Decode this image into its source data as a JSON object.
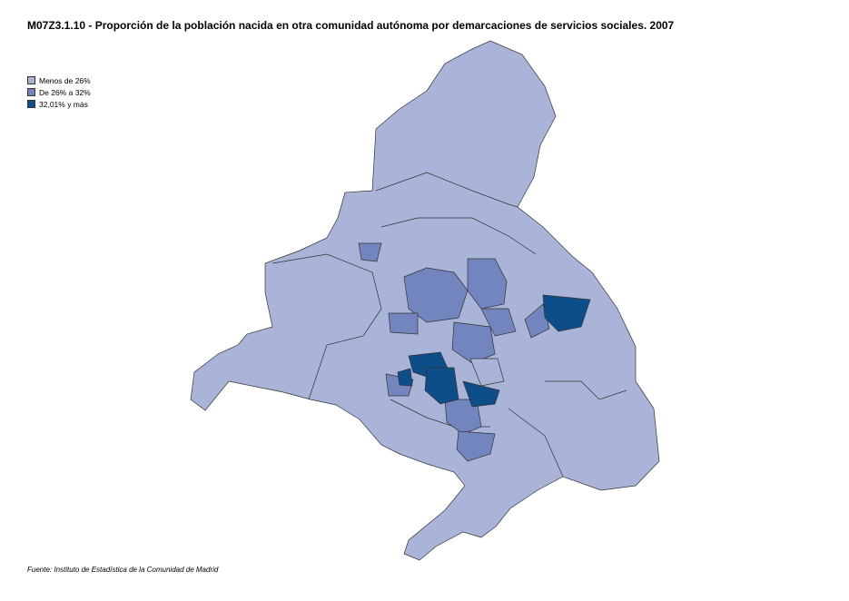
{
  "title": "M07Z3.1.10 - Proporción de la población nacida en otra comunidad autónoma  por demarcaciones de servicios sociales. 2007",
  "legend": [
    {
      "label": "Menos de 26%",
      "color": "#a9b4d8"
    },
    {
      "label": "De 26% a 32%",
      "color": "#7385bf"
    },
    {
      "label": "32,01% y más",
      "color": "#0d4e8a"
    }
  ],
  "source": "Fuente: Instituto de Estadística de la Comunidad de Madrid"
}
